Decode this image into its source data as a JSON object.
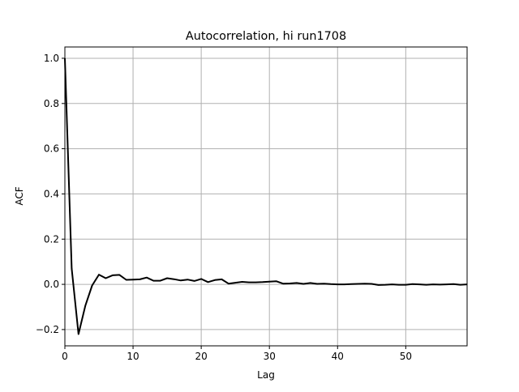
{
  "chart_data": {
    "type": "line",
    "title": "Autocorrelation, hi run1708",
    "xlabel": "Lag",
    "ylabel": "ACF",
    "xlim": [
      0,
      59
    ],
    "ylim": [
      -0.272,
      1.05
    ],
    "grid": true,
    "line_color": "#000000",
    "grid_color": "#b0b0b0",
    "xticks": [
      0,
      10,
      20,
      30,
      40,
      50
    ],
    "yticks": [
      -0.2,
      0.0,
      0.2,
      0.4,
      0.6,
      0.8,
      1.0
    ],
    "ytick_labels": [
      "−0.2",
      "0.0",
      "0.2",
      "0.4",
      "0.6",
      "0.8",
      "1.0"
    ],
    "x": [
      0,
      1,
      2,
      3,
      4,
      5,
      6,
      7,
      8,
      9,
      10,
      11,
      12,
      13,
      14,
      15,
      16,
      17,
      18,
      19,
      20,
      21,
      22,
      23,
      24,
      25,
      26,
      27,
      28,
      29,
      30,
      31,
      32,
      33,
      34,
      35,
      36,
      37,
      38,
      39,
      40,
      41,
      42,
      43,
      44,
      45,
      46,
      47,
      48,
      49,
      50,
      51,
      52,
      53,
      54,
      55,
      56,
      57,
      58,
      59
    ],
    "values": [
      1.0,
      0.07,
      -0.22,
      -0.095,
      -0.005,
      0.043,
      0.027,
      0.04,
      0.042,
      0.02,
      0.021,
      0.022,
      0.03,
      0.016,
      0.016,
      0.027,
      0.023,
      0.017,
      0.021,
      0.015,
      0.024,
      0.01,
      0.019,
      0.022,
      0.003,
      0.007,
      0.011,
      0.009,
      0.009,
      0.01,
      0.012,
      0.014,
      0.003,
      0.004,
      0.006,
      0.002,
      0.006,
      0.002,
      0.003,
      0.001,
      0.0,
      0.0,
      0.001,
      0.002,
      0.003,
      0.002,
      -0.003,
      -0.002,
      0.0,
      -0.002,
      -0.002,
      0.001,
      0.0,
      -0.002,
      0.0,
      -0.001,
      0.0,
      0.001,
      -0.002,
      0.0
    ]
  }
}
